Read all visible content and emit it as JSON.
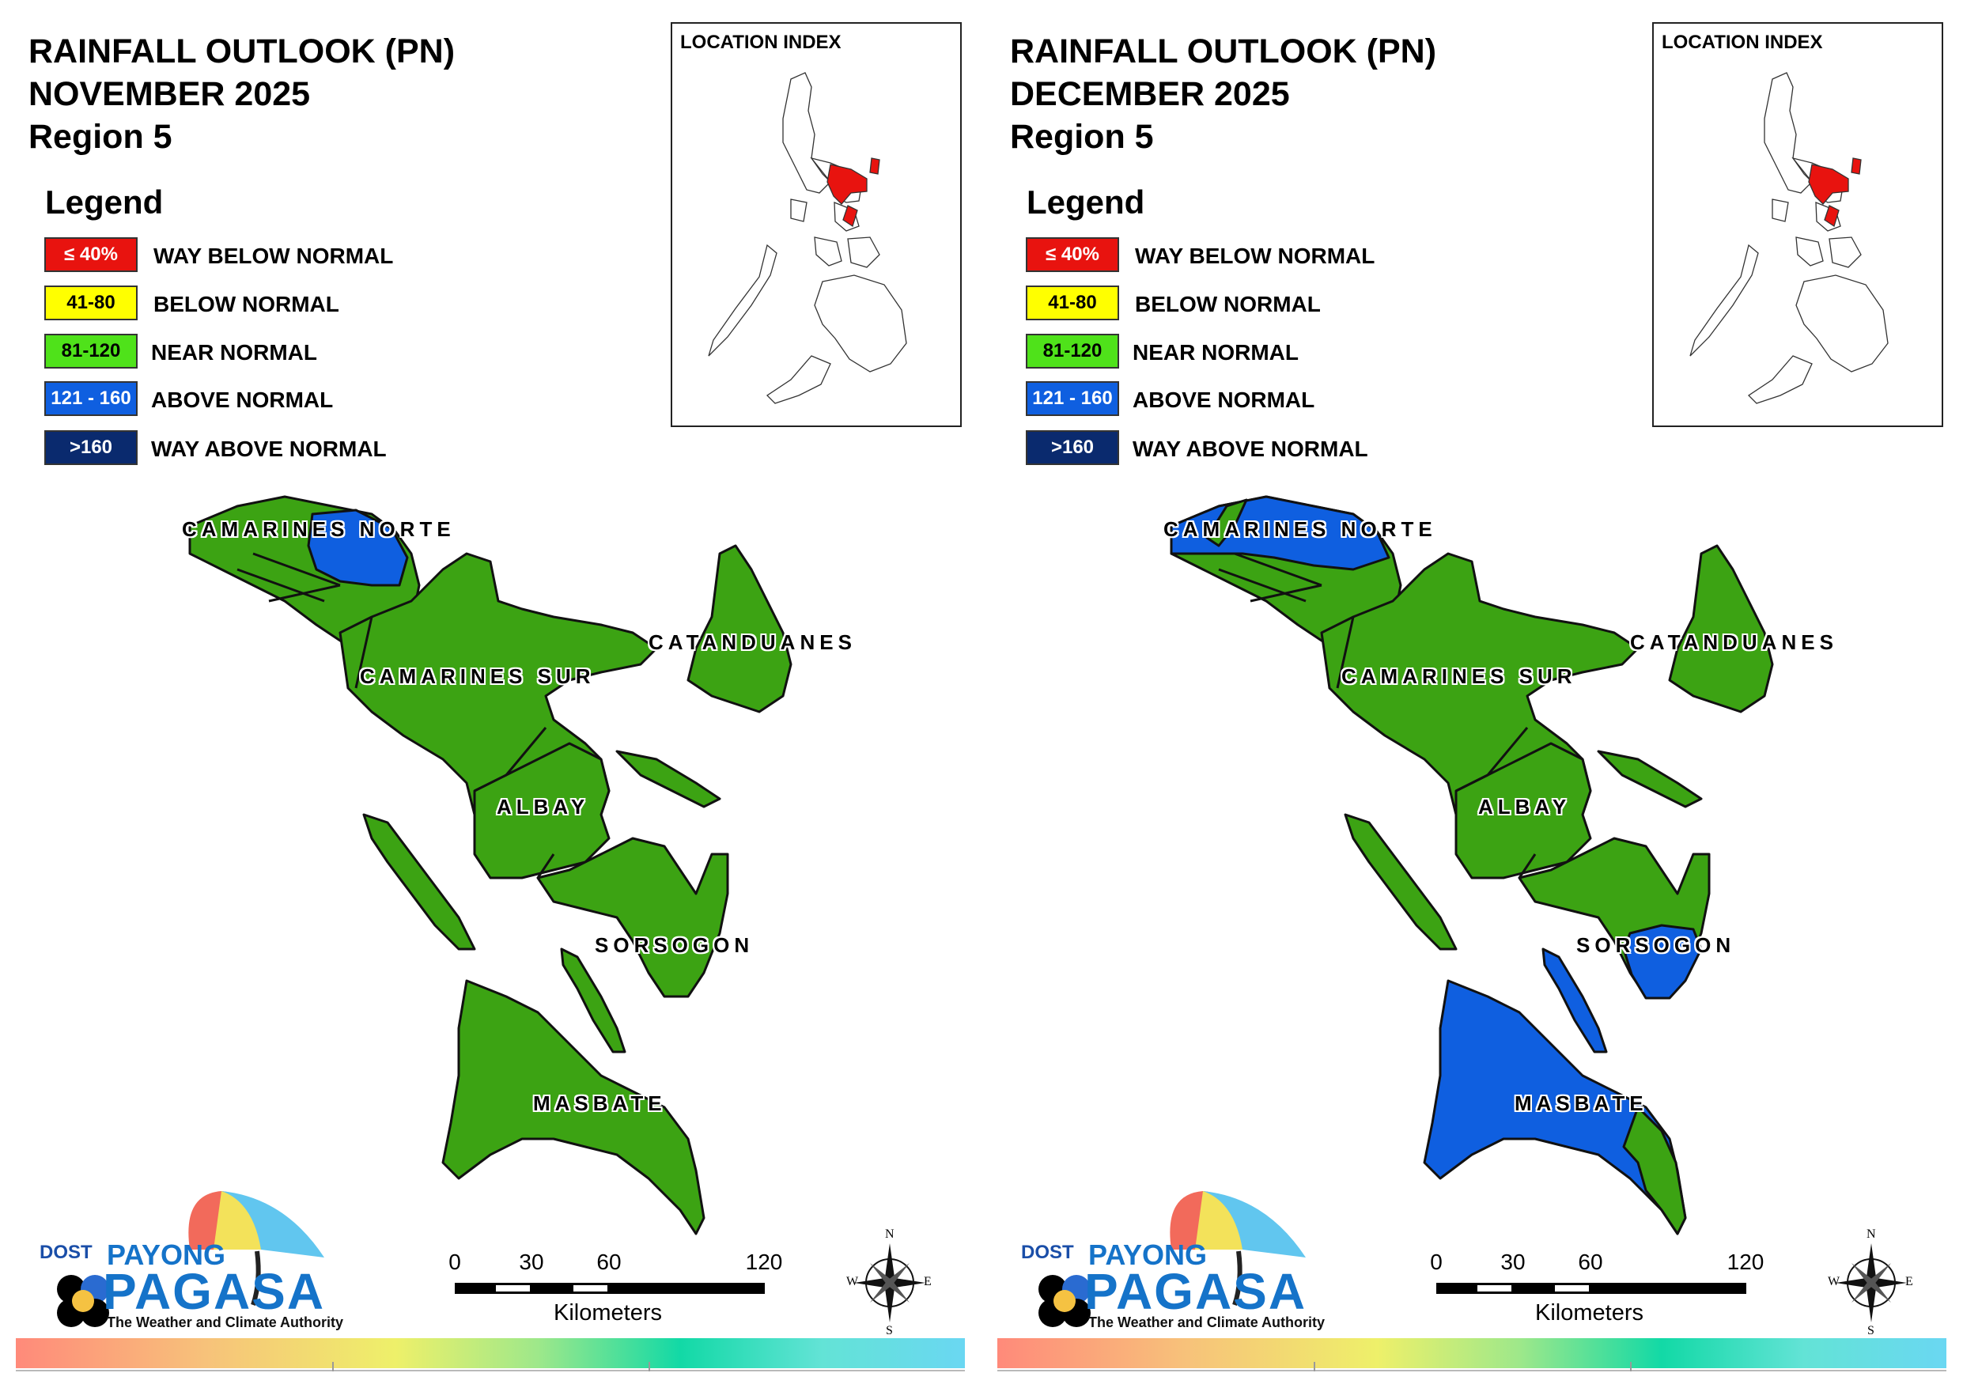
{
  "colors": {
    "way_below": "#e8130f",
    "below": "#ffff00",
    "near": "#3ca313",
    "near_swatch": "#4fe21a",
    "above": "#0f5fe0",
    "way_above": "#0a2a6e"
  },
  "legend": {
    "title": "Legend",
    "items": [
      {
        "range": "≤ 40%",
        "label": "WAY BELOW NORMAL",
        "color": "#e8130f",
        "text_color": "#ffffff"
      },
      {
        "range": "41-80",
        "label": "BELOW NORMAL",
        "color": "#ffff00",
        "text_color": "#000000"
      },
      {
        "range": "81-120",
        "label": "NEAR NORMAL",
        "color": "#4fe21a",
        "text_color": "#000000"
      },
      {
        "range": "121 - 160",
        "label": "ABOVE NORMAL",
        "color": "#0f5fe0",
        "text_color": "#ffffff"
      },
      {
        "range": ">160",
        "label": "WAY ABOVE NORMAL",
        "color": "#0a2a6e",
        "text_color": "#ffffff"
      }
    ]
  },
  "inset": {
    "title": "LOCATION INDEX"
  },
  "scale": {
    "ticks": [
      "0",
      "30",
      "60",
      "120"
    ],
    "unit": "Kilometers"
  },
  "compass": {
    "n": "N",
    "s": "S",
    "e": "E",
    "w": "W"
  },
  "brand": {
    "dost": "DOST",
    "payong": "PAYONG",
    "pagasa": "PAGASA",
    "tagline": "The Weather and Climate Authority"
  },
  "provinces": [
    "CAMARINES NORTE",
    "CATANDUANES",
    "CAMARINES SUR",
    "ALBAY",
    "SORSOGON",
    "MASBATE"
  ],
  "maps": [
    {
      "title_line1": "RAINFALL OUTLOOK (PN)",
      "title_line2": "NOVEMBER 2025",
      "title_line3": "Region 5",
      "classification": {
        "CAMARINES NORTE": "near normal (eastern part above normal)",
        "CATANDUANES": "near normal",
        "CAMARINES SUR": "near normal",
        "ALBAY": "near normal",
        "SORSOGON": "near normal",
        "MASBATE": "near normal"
      }
    },
    {
      "title_line1": "RAINFALL OUTLOOK (PN)",
      "title_line2": "DECEMBER 2025",
      "title_line3": "Region 5",
      "classification": {
        "CAMARINES NORTE": "above normal (central part near normal)",
        "CATANDUANES": "near normal",
        "CAMARINES SUR": "near normal",
        "ALBAY": "near normal",
        "SORSOGON": "near normal (southern part above normal)",
        "MASBATE": "above normal (southeastern tip near normal)"
      }
    }
  ]
}
